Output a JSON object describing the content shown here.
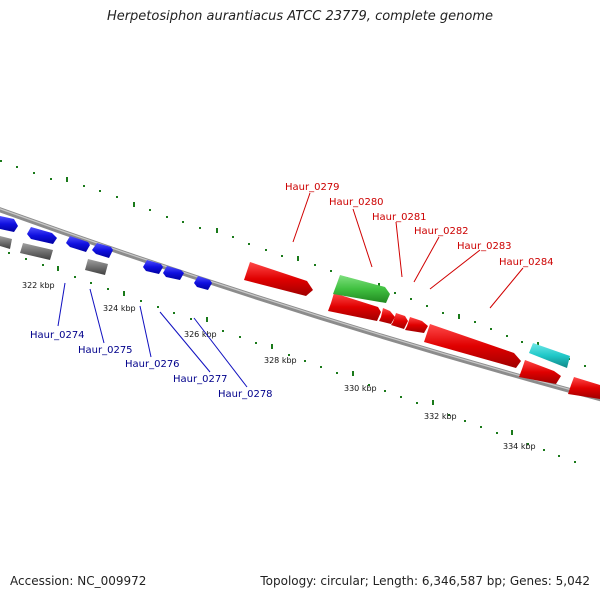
{
  "title": "Herpetosiphon aurantiacus ATCC 23779, complete genome",
  "footer": {
    "accession": "Accession: NC_009972",
    "summary": "Topology: circular; Length: 6,346,587 bp; Genes: 5,042"
  },
  "colors": {
    "backbone": "#8c8c8c",
    "ticks": "#1a7a1a",
    "forward_gene": "#e00000",
    "reverse_gene": "#1010e0",
    "rna_gene": "#40c040",
    "other_gene": "#20c8c8",
    "pseudo_gene": "#707070",
    "blue_label": "#00008b",
    "red_label": "#cc0000"
  },
  "kbp_labels": [
    "322 kbp",
    "324 kbp",
    "326 kbp",
    "328 kbp",
    "330 kbp",
    "332 kbp",
    "334 kbp"
  ],
  "gene_labels_blue": [
    "Haur_0274",
    "Haur_0275",
    "Haur_0276",
    "Haur_0277",
    "Haur_0278"
  ],
  "gene_labels_red": [
    "Haur_0279",
    "Haur_0280",
    "Haur_0281",
    "Haur_0282",
    "Haur_0283",
    "Haur_0284"
  ]
}
